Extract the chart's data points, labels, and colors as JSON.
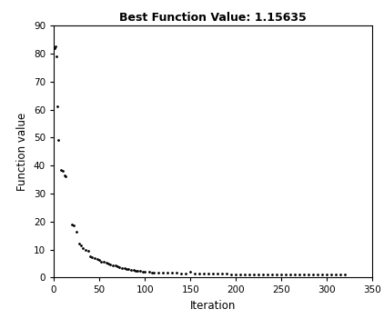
{
  "title": "Best Function Value: 1.15635",
  "xlabel": "Iteration",
  "ylabel": "Function value",
  "xlim": [
    0,
    350
  ],
  "ylim": [
    0,
    90
  ],
  "xticks": [
    0,
    50,
    100,
    150,
    200,
    250,
    300,
    350
  ],
  "yticks": [
    0,
    10,
    20,
    30,
    40,
    50,
    60,
    70,
    80,
    90
  ],
  "background_color": "#ffffff",
  "dot_color": "#000000",
  "best_value": 1.15635,
  "scatter_points": [
    [
      1,
      82
    ],
    [
      2,
      82.5
    ],
    [
      3,
      79
    ],
    [
      4,
      61
    ],
    [
      5,
      49
    ],
    [
      8,
      38.5
    ],
    [
      10,
      38
    ],
    [
      12,
      36.5
    ],
    [
      13,
      36
    ],
    [
      20,
      19
    ],
    [
      22,
      18.5
    ],
    [
      25,
      16.5
    ],
    [
      28,
      12
    ],
    [
      30,
      11.5
    ],
    [
      32,
      10.5
    ],
    [
      35,
      10
    ],
    [
      38,
      9.5
    ],
    [
      40,
      7.5
    ],
    [
      42,
      7.2
    ],
    [
      45,
      7
    ],
    [
      48,
      6.5
    ],
    [
      50,
      6.2
    ],
    [
      52,
      5.8
    ],
    [
      55,
      5.5
    ],
    [
      58,
      5.2
    ],
    [
      60,
      5
    ],
    [
      62,
      4.8
    ],
    [
      65,
      4.5
    ],
    [
      68,
      4.2
    ],
    [
      70,
      4
    ],
    [
      72,
      3.8
    ],
    [
      75,
      3.5
    ],
    [
      78,
      3.3
    ],
    [
      80,
      3.2
    ],
    [
      82,
      3.0
    ],
    [
      85,
      2.8
    ],
    [
      88,
      2.6
    ],
    [
      90,
      2.5
    ],
    [
      92,
      2.4
    ],
    [
      95,
      2.3
    ],
    [
      98,
      2.2
    ],
    [
      100,
      2.1
    ],
    [
      105,
      2.0
    ],
    [
      108,
      1.9
    ],
    [
      110,
      1.85
    ],
    [
      115,
      1.8
    ],
    [
      120,
      1.75
    ],
    [
      125,
      1.7
    ],
    [
      130,
      1.65
    ],
    [
      135,
      1.6
    ],
    [
      140,
      1.55
    ],
    [
      145,
      1.5
    ],
    [
      150,
      2.0
    ],
    [
      155,
      1.45
    ],
    [
      160,
      1.4
    ],
    [
      165,
      1.38
    ],
    [
      170,
      1.35
    ],
    [
      175,
      1.33
    ],
    [
      180,
      1.3
    ],
    [
      185,
      1.28
    ],
    [
      190,
      1.26
    ],
    [
      195,
      1.25
    ],
    [
      200,
      1.24
    ],
    [
      205,
      1.23
    ],
    [
      210,
      1.22
    ],
    [
      215,
      1.21
    ],
    [
      220,
      1.2
    ],
    [
      225,
      1.19
    ],
    [
      230,
      1.19
    ],
    [
      235,
      1.18
    ],
    [
      240,
      1.18
    ],
    [
      245,
      1.17
    ],
    [
      250,
      1.17
    ],
    [
      255,
      1.17
    ],
    [
      260,
      1.17
    ],
    [
      265,
      1.16
    ],
    [
      270,
      1.16
    ],
    [
      275,
      1.16
    ],
    [
      280,
      1.16
    ],
    [
      285,
      1.16
    ],
    [
      290,
      1.16
    ],
    [
      295,
      1.16
    ],
    [
      300,
      1.16
    ],
    [
      305,
      1.16
    ],
    [
      310,
      1.16
    ],
    [
      315,
      1.16
    ],
    [
      320,
      1.16
    ]
  ]
}
